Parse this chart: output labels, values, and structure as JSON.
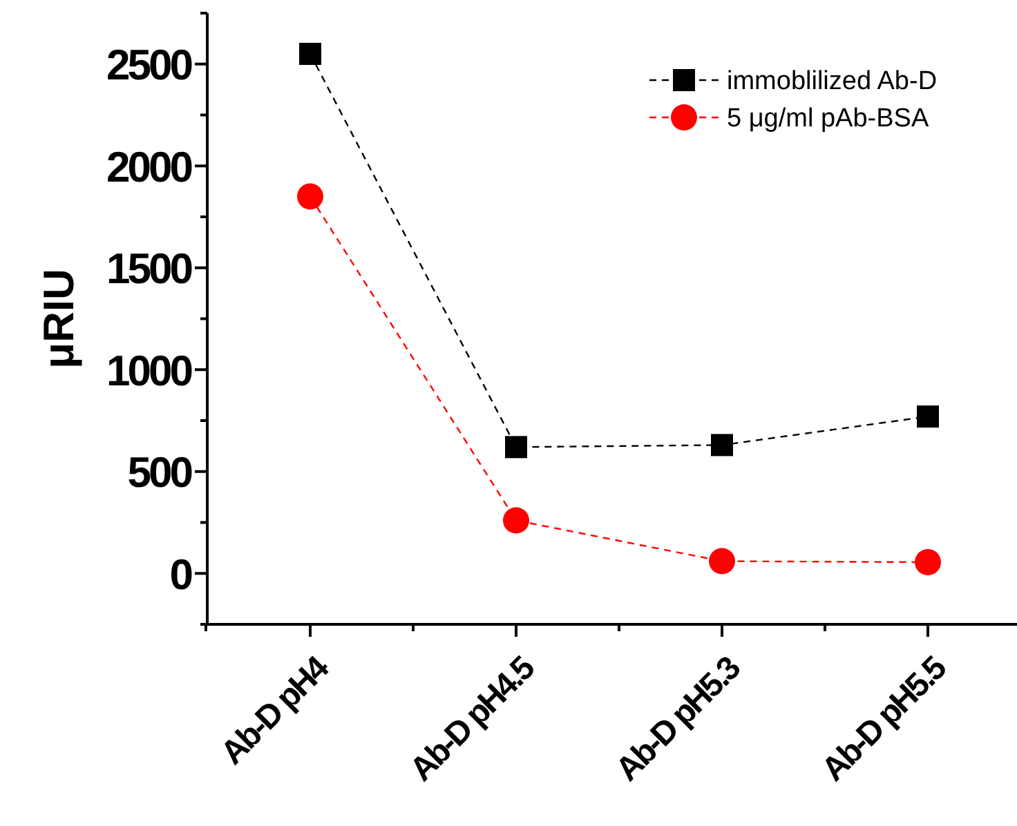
{
  "chart_data": {
    "type": "line",
    "ylabel": "μRIU",
    "categories": [
      "Ab-D pH4",
      "Ab-D pH4.5",
      "Ab-D pH5.3",
      "Ab-D pH5.5"
    ],
    "series": [
      {
        "name": "immoblilized Ab-D",
        "color": "#000000",
        "marker": "square",
        "values": [
          2550,
          620,
          630,
          770
        ]
      },
      {
        "name": "5 μg/ml pAb-BSA",
        "color": "#ff0000",
        "marker": "circle",
        "values": [
          1850,
          260,
          60,
          55
        ]
      }
    ],
    "ylim": [
      -250,
      2750
    ],
    "yticks": [
      {
        "value": -250,
        "label": null
      },
      0,
      {
        "value": 250,
        "label": null
      },
      500,
      {
        "value": 750,
        "label": null
      },
      1000,
      {
        "value": 1250,
        "label": null
      },
      1500,
      {
        "value": 1750,
        "label": null
      },
      2000,
      {
        "value": 2250,
        "label": null
      },
      2500,
      {
        "value": 2750,
        "label": null
      }
    ],
    "line_style": "dashed",
    "legend": "top right",
    "grid": false
  }
}
